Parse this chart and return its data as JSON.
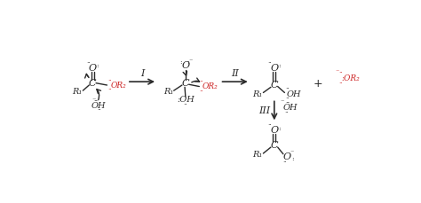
{
  "bg_color": "#ffffff",
  "black": "#2a2a2a",
  "red": "#cc2222",
  "fig_width": 4.74,
  "fig_height": 2.29,
  "dpi": 100,
  "xlim": [
    0,
    474
  ],
  "ylim": [
    0,
    229
  ]
}
